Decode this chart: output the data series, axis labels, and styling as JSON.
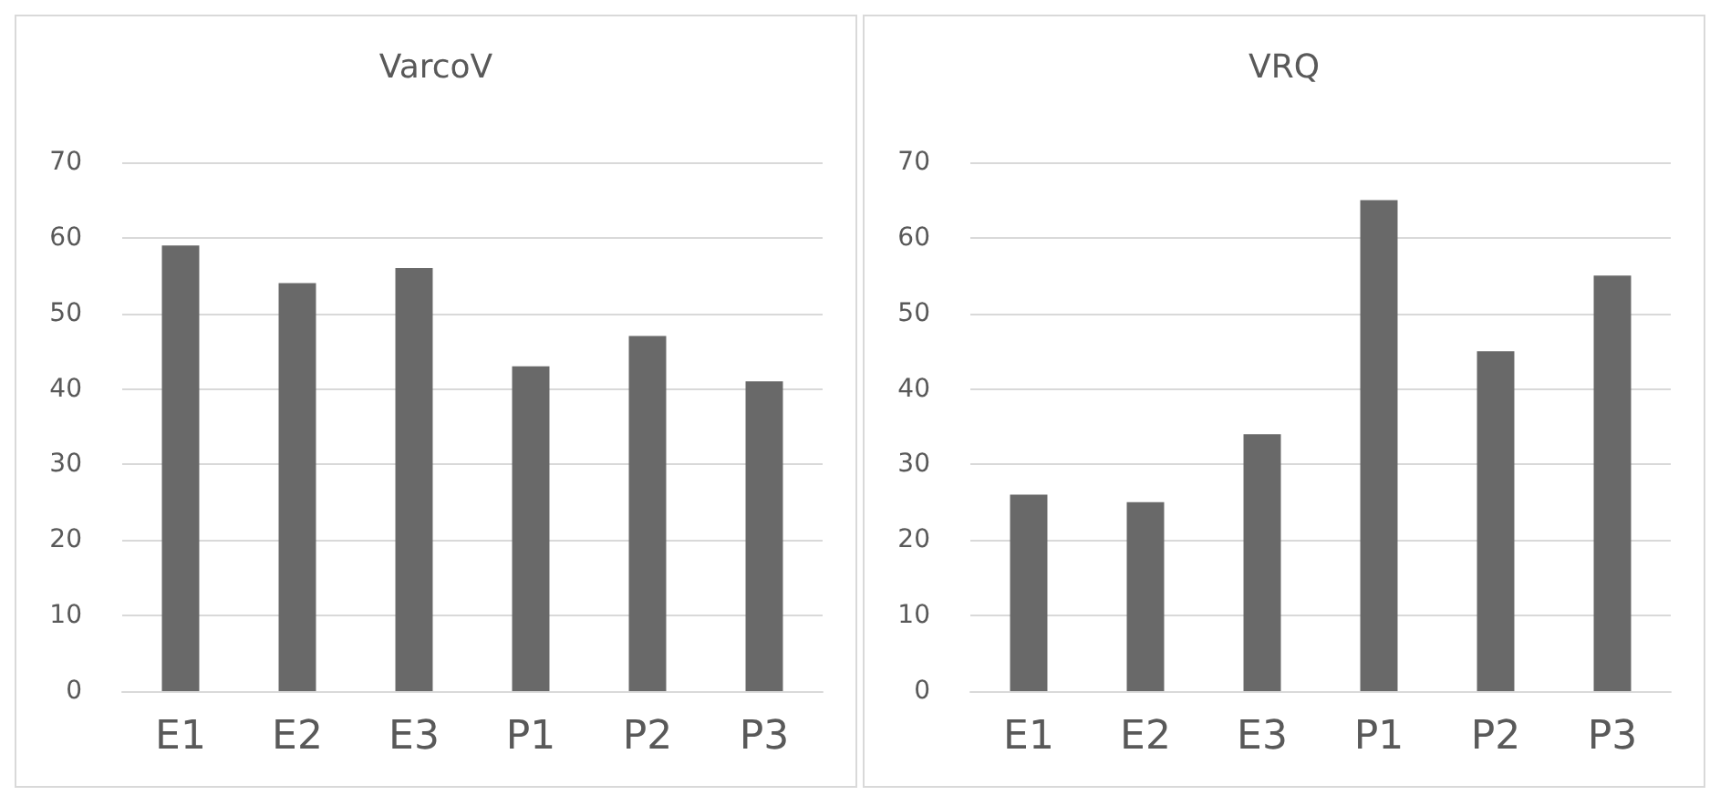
{
  "chart_data": [
    {
      "type": "bar",
      "title": "VarcoV",
      "categories": [
        "E1",
        "E2",
        "E3",
        "P1",
        "P2",
        "P3"
      ],
      "values": [
        59,
        54,
        56,
        43,
        47,
        41
      ],
      "color": "#696969",
      "ylim": [
        0,
        70
      ],
      "yticks": [
        0,
        10,
        20,
        30,
        40,
        50,
        60,
        70
      ],
      "grid": "y"
    },
    {
      "type": "bar",
      "title": "VRQ",
      "categories": [
        "E1",
        "E2",
        "E3",
        "P1",
        "P2",
        "P3"
      ],
      "values": [
        26,
        25,
        34,
        65,
        45,
        55
      ],
      "color": "#696969",
      "ylim": [
        0,
        70
      ],
      "yticks": [
        0,
        10,
        20,
        30,
        40,
        50,
        60,
        70
      ],
      "grid": "y"
    }
  ]
}
